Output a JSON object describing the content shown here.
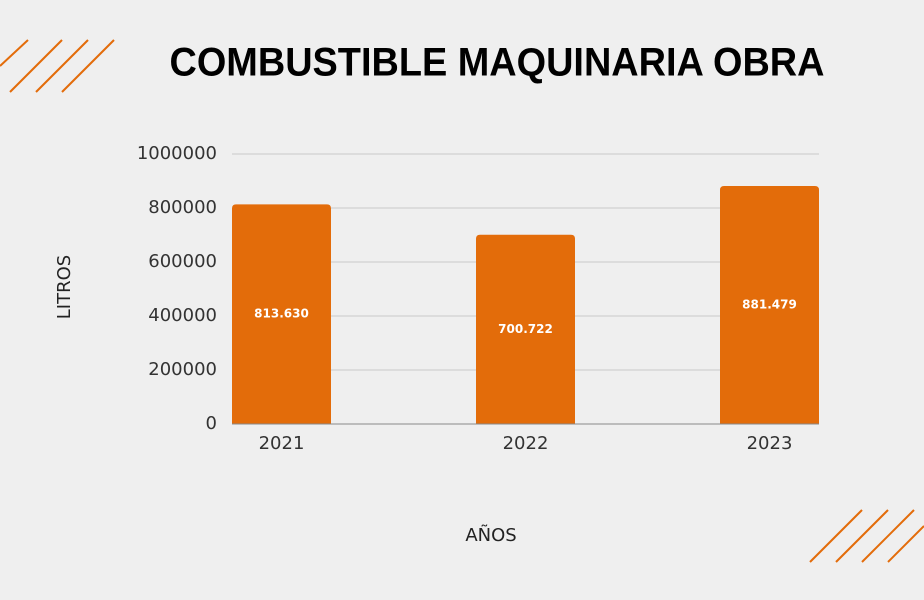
{
  "chart_data": {
    "type": "bar",
    "title": "COMBUSTIBLE MAQUINARIA OBRA",
    "categories": [
      "2021",
      "2022",
      "2023"
    ],
    "values": [
      813630,
      700722,
      881479
    ],
    "value_labels": [
      "813.630",
      "700.722",
      "881.479"
    ],
    "color": "#e36c0a",
    "ylim": [
      0,
      1000000
    ],
    "yticks": [
      0,
      200000,
      400000,
      600000,
      800000,
      1000000
    ],
    "grid": true,
    "y_label": "LITROS",
    "x_label": "AÑOS"
  }
}
